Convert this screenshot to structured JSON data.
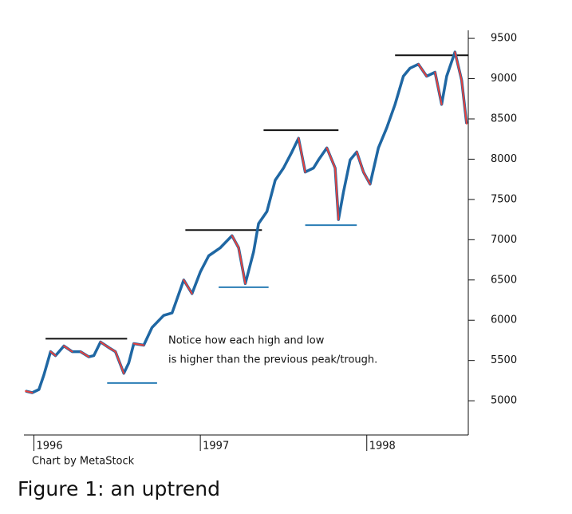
{
  "chart_data": {
    "type": "line",
    "annotation": [
      "Notice how each high and low",
      "is higher than the previous peak/trough."
    ],
    "credit": "Chart by MetaStock",
    "caption": "Figure 1: an uptrend",
    "x": [
      1995.95,
      1995.99,
      1996.03,
      1996.06,
      1996.1,
      1996.13,
      1996.18,
      1996.23,
      1996.28,
      1996.33,
      1996.36,
      1996.4,
      1996.45,
      1996.49,
      1996.54,
      1996.57,
      1996.6,
      1996.66,
      1996.71,
      1996.78,
      1996.83,
      1996.9,
      1996.95,
      1997.0,
      1997.05,
      1997.12,
      1997.19,
      1997.23,
      1997.27,
      1997.32,
      1997.35,
      1997.4,
      1997.45,
      1997.5,
      1997.55,
      1997.59,
      1997.63,
      1997.68,
      1997.71,
      1997.76,
      1997.81,
      1997.83,
      1997.86,
      1997.9,
      1997.94,
      1997.98,
      1998.02,
      1998.07,
      1998.12,
      1998.17,
      1998.22,
      1998.26,
      1998.31,
      1998.36,
      1998.41,
      1998.45,
      1998.48,
      1998.53,
      1998.57,
      1998.6
    ],
    "series": [
      {
        "color": "#1f67a3",
        "down_color": "#e8413c",
        "values": [
          5120,
          5100,
          5140,
          5320,
          5610,
          5560,
          5680,
          5610,
          5610,
          5545,
          5560,
          5730,
          5660,
          5610,
          5340,
          5470,
          5710,
          5690,
          5910,
          6060,
          6090,
          6500,
          6330,
          6600,
          6800,
          6900,
          7050,
          6900,
          6455,
          6850,
          7200,
          7350,
          7740,
          7890,
          8090,
          8260,
          7840,
          7890,
          7990,
          8140,
          7890,
          7250,
          7590,
          7990,
          8090,
          7840,
          7690,
          8140,
          8390,
          8680,
          9030,
          9130,
          9180,
          9030,
          9080,
          8680,
          9030,
          9330,
          8980,
          8440
        ]
      }
    ],
    "reference_lines": [
      {
        "value": 5770,
        "x": [
          1996.07,
          1996.56
        ],
        "color": "#111111"
      },
      {
        "value": 5220,
        "x": [
          1996.44,
          1996.74
        ],
        "color": "#2a7db5"
      },
      {
        "value": 7120,
        "x": [
          1996.91,
          1997.37
        ],
        "color": "#111111"
      },
      {
        "value": 6410,
        "x": [
          1997.11,
          1997.41
        ],
        "color": "#2a7db5"
      },
      {
        "value": 8360,
        "x": [
          1997.38,
          1997.83
        ],
        "color": "#111111"
      },
      {
        "value": 7180,
        "x": [
          1997.63,
          1997.94
        ],
        "color": "#2a7db5"
      },
      {
        "value": 9290,
        "x": [
          1998.17,
          1998.61
        ],
        "color": "#111111"
      }
    ],
    "xlim": [
      1995.94,
      1998.61
    ],
    "xticks": [
      1996,
      1997,
      1998
    ],
    "ylim": [
      4575,
      9600
    ],
    "yticks": [
      5000,
      5500,
      6000,
      6500,
      7000,
      7500,
      8000,
      8500,
      9000,
      9500
    ]
  }
}
